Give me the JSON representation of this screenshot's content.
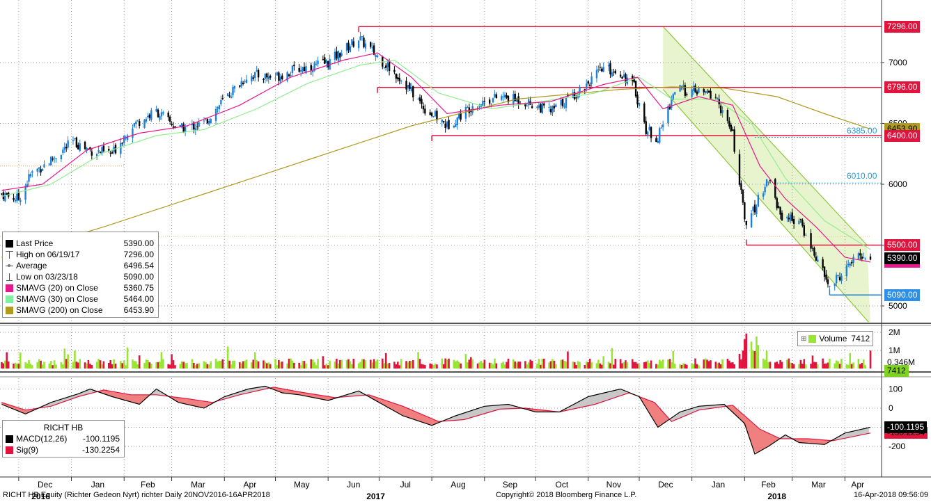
{
  "chart_data": [
    {
      "type": "candlestick",
      "panel": "price",
      "x_range": [
        "2016-11-20",
        "2018-04-16"
      ],
      "ylim": [
        4850,
        7400
      ],
      "y_ticks": [
        5000,
        5500,
        6000,
        6500,
        7000
      ],
      "grid": true,
      "x_tick_labels": [
        "Dec",
        "Jan",
        "Feb",
        "Mar",
        "Apr",
        "May",
        "Jun",
        "Jul",
        "Aug",
        "Sep",
        "Oct",
        "Nov",
        "Dec",
        "Jan",
        "Feb",
        "Mar",
        "Apr"
      ],
      "year_labels": [
        "2016",
        "2017",
        "2018"
      ],
      "close_path": [
        [
          "2016-11-21",
          5920
        ],
        [
          "2016-12-01",
          5880
        ],
        [
          "2016-12-08",
          6080
        ],
        [
          "2016-12-20",
          6200
        ],
        [
          "2017-01-02",
          6350
        ],
        [
          "2017-01-12",
          6280
        ],
        [
          "2017-01-25",
          6250
        ],
        [
          "2017-02-05",
          6480
        ],
        [
          "2017-02-20",
          6600
        ],
        [
          "2017-03-05",
          6450
        ],
        [
          "2017-03-20",
          6500
        ],
        [
          "2017-04-01",
          6700
        ],
        [
          "2017-04-15",
          6900
        ],
        [
          "2017-04-30",
          6880
        ],
        [
          "2017-05-15",
          6950
        ],
        [
          "2017-06-01",
          7000
        ],
        [
          "2017-06-19",
          7200
        ],
        [
          "2017-06-30",
          7050
        ],
        [
          "2017-07-15",
          6850
        ],
        [
          "2017-07-28",
          6620
        ],
        [
          "2017-08-10",
          6480
        ],
        [
          "2017-08-25",
          6650
        ],
        [
          "2017-09-10",
          6720
        ],
        [
          "2017-09-25",
          6680
        ],
        [
          "2017-10-10",
          6600
        ],
        [
          "2017-10-25",
          6750
        ],
        [
          "2017-11-10",
          6950
        ],
        [
          "2017-11-20",
          6920
        ],
        [
          "2017-11-28",
          6800
        ],
        [
          "2017-12-05",
          6450
        ],
        [
          "2017-12-12",
          6380
        ],
        [
          "2017-12-22",
          6780
        ],
        [
          "2018-01-05",
          6760
        ],
        [
          "2018-01-15",
          6720
        ],
        [
          "2018-01-25",
          6400
        ],
        [
          "2018-02-02",
          5620
        ],
        [
          "2018-02-08",
          5850
        ],
        [
          "2018-02-15",
          6050
        ],
        [
          "2018-02-22",
          5750
        ],
        [
          "2018-03-05",
          5700
        ],
        [
          "2018-03-15",
          5400
        ],
        [
          "2018-03-23",
          5150
        ],
        [
          "2018-04-01",
          5300
        ],
        [
          "2018-04-10",
          5420
        ],
        [
          "2018-04-16",
          5390
        ]
      ],
      "sma20_path": [
        [
          "2016-11-21",
          5950
        ],
        [
          "2016-12-15",
          6000
        ],
        [
          "2017-01-10",
          6280
        ],
        [
          "2017-02-10",
          6420
        ],
        [
          "2017-03-10",
          6480
        ],
        [
          "2017-04-10",
          6650
        ],
        [
          "2017-05-10",
          6880
        ],
        [
          "2017-06-10",
          7020
        ],
        [
          "2017-06-30",
          7080
        ],
        [
          "2017-07-20",
          6880
        ],
        [
          "2017-08-10",
          6580
        ],
        [
          "2017-09-10",
          6650
        ],
        [
          "2017-10-10",
          6680
        ],
        [
          "2017-11-10",
          6820
        ],
        [
          "2017-11-30",
          6880
        ],
        [
          "2017-12-15",
          6620
        ],
        [
          "2018-01-05",
          6720
        ],
        [
          "2018-01-25",
          6650
        ],
        [
          "2018-02-10",
          6150
        ],
        [
          "2018-02-25",
          5880
        ],
        [
          "2018-03-15",
          5650
        ],
        [
          "2018-04-01",
          5400
        ],
        [
          "2018-04-16",
          5360.75
        ]
      ],
      "sma30_path": [
        [
          "2016-11-21",
          5900
        ],
        [
          "2016-12-20",
          6000
        ],
        [
          "2017-01-20",
          6260
        ],
        [
          "2017-02-20",
          6400
        ],
        [
          "2017-03-20",
          6450
        ],
        [
          "2017-04-20",
          6620
        ],
        [
          "2017-05-20",
          6830
        ],
        [
          "2017-06-20",
          6980
        ],
        [
          "2017-07-10",
          7020
        ],
        [
          "2017-08-05",
          6750
        ],
        [
          "2017-09-05",
          6620
        ],
        [
          "2017-10-05",
          6680
        ],
        [
          "2017-11-05",
          6750
        ],
        [
          "2017-12-01",
          6880
        ],
        [
          "2017-12-20",
          6700
        ],
        [
          "2018-01-15",
          6700
        ],
        [
          "2018-02-05",
          6500
        ],
        [
          "2018-02-25",
          6050
        ],
        [
          "2018-03-20",
          5700
        ],
        [
          "2018-04-16",
          5464
        ]
      ],
      "sma200_path": [
        [
          "2016-11-21",
          5400
        ],
        [
          "2017-01-20",
          5650
        ],
        [
          "2017-03-20",
          5920
        ],
        [
          "2017-05-20",
          6200
        ],
        [
          "2017-07-20",
          6480
        ],
        [
          "2017-09-20",
          6700
        ],
        [
          "2017-11-20",
          6780
        ],
        [
          "2017-12-20",
          6800
        ],
        [
          "2018-01-20",
          6790
        ],
        [
          "2018-02-20",
          6720
        ],
        [
          "2018-03-20",
          6580
        ],
        [
          "2018-04-16",
          6453.9
        ]
      ],
      "horizontal_levels": [
        {
          "value": 7296.0,
          "label": "7296.00",
          "color": "#e0143c",
          "from": "2017-06-19"
        },
        {
          "value": 6796.0,
          "label": "6796.00",
          "color": "#e0143c",
          "from": "2017-06-30"
        },
        {
          "value": 6400.0,
          "label": "6400.00",
          "color": "#e0143c",
          "from": "2017-08-01"
        },
        {
          "value": 5500.0,
          "label": "5500.00",
          "color": "#e0143c",
          "from": "2018-02-02"
        },
        {
          "value": 5090.0,
          "label": "5090.00",
          "color": "#1e7fd8",
          "from": "2018-03-23"
        },
        {
          "value": 6385.0,
          "label": "6385.00",
          "color": "#1e9fd8",
          "from": "2018-02-07",
          "dotted": true
        },
        {
          "value": 6010.0,
          "label": "6010.00",
          "color": "#1e9fd8",
          "from": "2018-02-20",
          "dotted": true
        }
      ],
      "channel": {
        "upper": [
          [
            "2017-12-15",
            7296
          ],
          [
            "2018-04-14",
            5500
          ]
        ],
        "lower": [
          [
            "2017-12-15",
            6780
          ],
          [
            "2018-04-16",
            4850
          ]
        ],
        "fill": "#e6f3c8",
        "stroke": "#8ec63f"
      },
      "last_price_tag": "5390.00",
      "last_price_value": 5390,
      "legend": {
        "items": [
          {
            "label": "Last Price",
            "value": "5390.00",
            "color": "#000000",
            "kind": "box"
          },
          {
            "label": "High on 06/19/17",
            "value": "7296.00",
            "kind": "high"
          },
          {
            "label": "Average",
            "value": "6496.54",
            "kind": "avg"
          },
          {
            "label": "Low on 03/23/18",
            "value": "5090.00",
            "kind": "low"
          },
          {
            "label": "SMAVG (20)  on Close",
            "value": "5360.75",
            "color": "#e6198c",
            "kind": "box"
          },
          {
            "label": "SMAVG (30)  on Close",
            "value": "5464.00",
            "color": "#7ef0a0",
            "kind": "box"
          },
          {
            "label": "SMAVG (200)  on Close",
            "value": "6453.90",
            "color": "#b09a20",
            "kind": "box"
          }
        ]
      },
      "colors": {
        "up": "#1e7fd8",
        "down": "#000000",
        "sma20": "#e6198c",
        "sma30": "#90ee90",
        "sma200": "#b09a20"
      }
    },
    {
      "type": "bar",
      "panel": "volume",
      "y_ticks": [
        "1M",
        "2M"
      ],
      "tick_values": [
        1000000,
        2000000
      ],
      "legend_label": "Volume",
      "legend_value": "7412",
      "last_tag": "7412",
      "avg_tag": "0.346M",
      "avg_value": 346000,
      "colors": {
        "up": "#99e632",
        "down": "#e0143c"
      }
    },
    {
      "type": "line",
      "panel": "macd",
      "y_ticks": [
        100,
        0,
        -100,
        -200
      ],
      "macd_path": [
        [
          "2016-11-21",
          20
        ],
        [
          "2016-12-05",
          -30
        ],
        [
          "2016-12-20",
          30
        ],
        [
          "2017-01-05",
          75
        ],
        [
          "2017-01-12",
          100
        ],
        [
          "2017-01-25",
          60
        ],
        [
          "2017-02-10",
          20
        ],
        [
          "2017-02-20",
          100
        ],
        [
          "2017-03-05",
          30
        ],
        [
          "2017-03-20",
          0
        ],
        [
          "2017-04-01",
          60
        ],
        [
          "2017-04-15",
          100
        ],
        [
          "2017-04-25",
          115
        ],
        [
          "2017-05-05",
          80
        ],
        [
          "2017-05-15",
          70
        ],
        [
          "2017-06-01",
          40
        ],
        [
          "2017-06-19",
          90
        ],
        [
          "2017-07-01",
          30
        ],
        [
          "2017-07-15",
          -40
        ],
        [
          "2017-08-01",
          -90
        ],
        [
          "2017-08-15",
          -40
        ],
        [
          "2017-09-01",
          10
        ],
        [
          "2017-09-15",
          20
        ],
        [
          "2017-10-01",
          -20
        ],
        [
          "2017-10-15",
          -20
        ],
        [
          "2017-11-01",
          60
        ],
        [
          "2017-11-20",
          100
        ],
        [
          "2017-12-01",
          60
        ],
        [
          "2017-12-12",
          -100
        ],
        [
          "2017-12-25",
          -20
        ],
        [
          "2018-01-05",
          10
        ],
        [
          "2018-01-20",
          20
        ],
        [
          "2018-02-01",
          -80
        ],
        [
          "2018-02-07",
          -240
        ],
        [
          "2018-02-15",
          -200
        ],
        [
          "2018-02-25",
          -140
        ],
        [
          "2018-03-05",
          -180
        ],
        [
          "2018-03-20",
          -190
        ],
        [
          "2018-04-01",
          -130
        ],
        [
          "2018-04-16",
          -100.1195
        ]
      ],
      "signal_path": [
        [
          "2016-11-21",
          30
        ],
        [
          "2016-12-05",
          -10
        ],
        [
          "2016-12-20",
          10
        ],
        [
          "2017-01-05",
          60
        ],
        [
          "2017-01-20",
          95
        ],
        [
          "2017-02-05",
          70
        ],
        [
          "2017-02-20",
          70
        ],
        [
          "2017-03-10",
          50
        ],
        [
          "2017-03-25",
          30
        ],
        [
          "2017-04-10",
          70
        ],
        [
          "2017-04-30",
          110
        ],
        [
          "2017-05-15",
          85
        ],
        [
          "2017-06-05",
          55
        ],
        [
          "2017-06-25",
          70
        ],
        [
          "2017-07-15",
          10
        ],
        [
          "2017-08-05",
          -70
        ],
        [
          "2017-08-20",
          -60
        ],
        [
          "2017-09-10",
          -5
        ],
        [
          "2017-09-25",
          0
        ],
        [
          "2017-10-15",
          -20
        ],
        [
          "2017-11-05",
          20
        ],
        [
          "2017-11-25",
          80
        ],
        [
          "2017-12-10",
          30
        ],
        [
          "2017-12-20",
          -70
        ],
        [
          "2018-01-05",
          -10
        ],
        [
          "2018-01-25",
          15
        ],
        [
          "2018-02-10",
          -110
        ],
        [
          "2018-02-22",
          -160
        ],
        [
          "2018-03-10",
          -160
        ],
        [
          "2018-03-25",
          -170
        ],
        [
          "2018-04-16",
          -130.2254
        ]
      ],
      "legend": {
        "title": "RICHT HB",
        "items": [
          {
            "label": "MACD(12,26)",
            "value": "-100.1195",
            "color": "#000000"
          },
          {
            "label": "Sig(9)",
            "value": "-130.2254",
            "color": "#e0143c"
          }
        ]
      },
      "macd_tag": "-100.1195",
      "sig_tag": "-130.2254",
      "colors": {
        "macd": "#000000",
        "signal": "#e0143c",
        "fill_pos": "#c8c8c8",
        "fill_neg": "#f08080"
      }
    }
  ],
  "footer": {
    "left": "RICHT HB Equity (Richter Gedeon Nyrt) richter  Daily 20NOV2016-16APR2018",
    "center": "Copyright© 2018 Bloomberg Finance L.P.",
    "right": "16-Apr-2018 09:56:09"
  }
}
